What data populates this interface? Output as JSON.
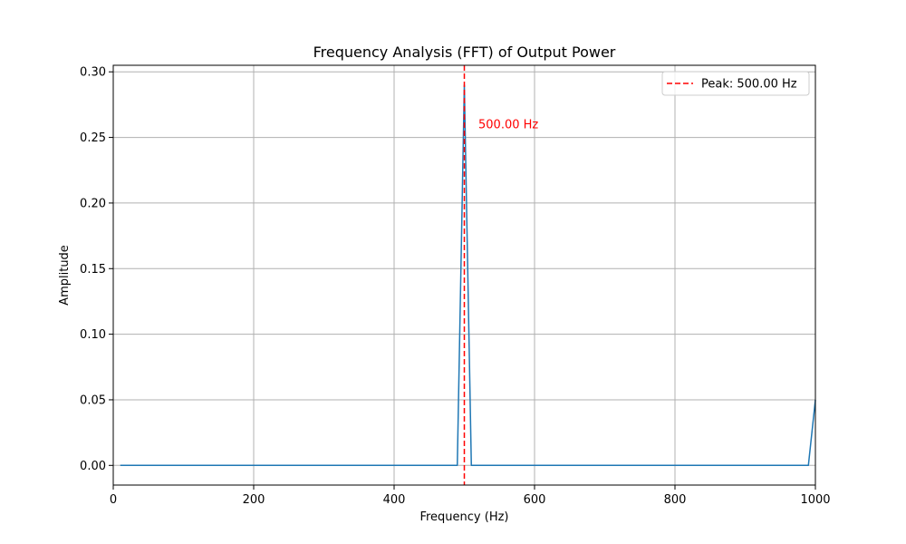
{
  "chart_data": {
    "type": "line",
    "title": "Frequency Analysis (FFT) of Output Power",
    "xlabel": "Frequency (Hz)",
    "ylabel": "Amplitude",
    "xlim": [
      0,
      1000
    ],
    "ylim": [
      -0.015,
      0.305
    ],
    "x_ticks": [
      0,
      200,
      400,
      600,
      800,
      1000
    ],
    "x_tick_labels": [
      "0",
      "200",
      "400",
      "600",
      "800",
      "1000"
    ],
    "y_ticks": [
      0.0,
      0.05,
      0.1,
      0.15,
      0.2,
      0.25,
      0.3
    ],
    "y_tick_labels": [
      "0.00",
      "0.05",
      "0.10",
      "0.15",
      "0.20",
      "0.25",
      "0.30"
    ],
    "grid": true,
    "legend_position": "top-right",
    "series": [
      {
        "x": [
          10,
          490,
          500,
          510,
          990,
          1000
        ],
        "y": [
          0.0,
          0.0,
          0.29,
          0.0,
          0.0,
          0.05
        ],
        "color": "#1f77b4"
      }
    ],
    "reference_line": {
      "orientation": "vertical",
      "x": 500,
      "color": "#ff0000",
      "style": "dashed",
      "legend_label": "Peak: 500.00 Hz"
    },
    "annotations": [
      {
        "text": "500.00 Hz",
        "x": 520,
        "y": 0.26,
        "color": "#ff0000"
      }
    ]
  }
}
